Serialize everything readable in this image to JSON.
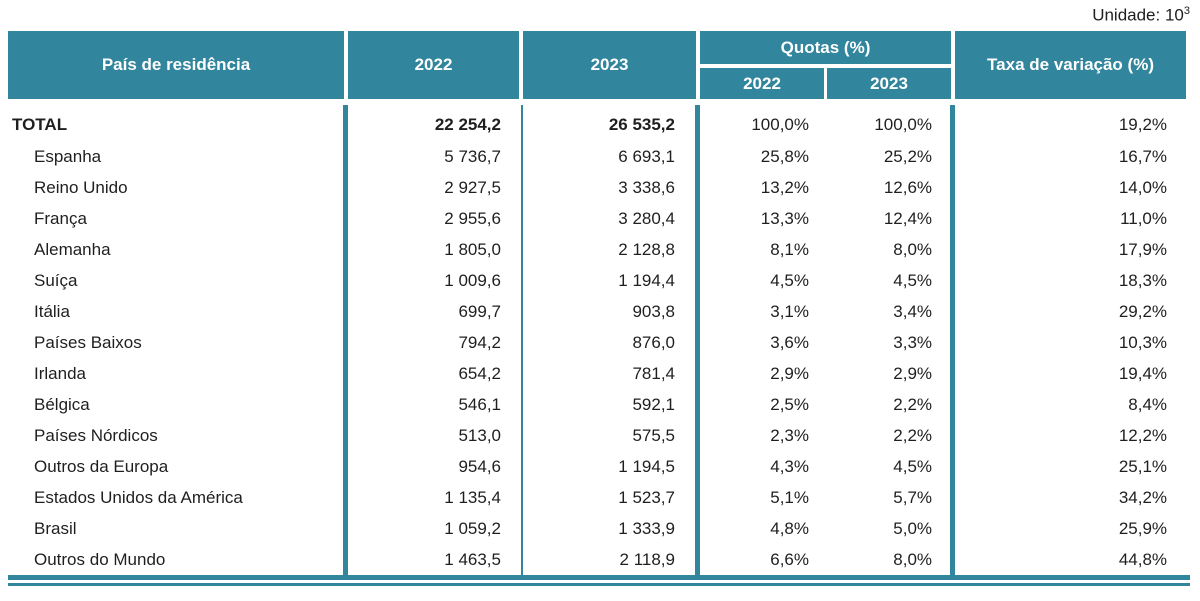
{
  "unit": {
    "label": "Unidade: 10",
    "exponent": "3"
  },
  "colors": {
    "accent_teal": "#31859C",
    "text_dark": "#1F1F1F",
    "header_text": "#FFFFFF"
  },
  "table": {
    "headers": {
      "country": "País de residência",
      "col_2022": "2022",
      "col_2023": "2023",
      "quotas_group": "Quotas (%)",
      "quotas_2022": "2022",
      "quotas_2023": "2023",
      "variation": "Taxa de variação (%)"
    },
    "rows": [
      {
        "country": "TOTAL",
        "v2022": "22 254,2",
        "v2023": "26 535,2",
        "q2022": "100,0%",
        "q2023": "100,0%",
        "variation": "19,2%",
        "emphasis": true
      },
      {
        "country": "Espanha",
        "v2022": "5 736,7",
        "v2023": "6 693,1",
        "q2022": "25,8%",
        "q2023": "25,2%",
        "variation": "16,7%",
        "emphasis": false
      },
      {
        "country": "Reino Unido",
        "v2022": "2 927,5",
        "v2023": "3 338,6",
        "q2022": "13,2%",
        "q2023": "12,6%",
        "variation": "14,0%",
        "emphasis": false
      },
      {
        "country": "França",
        "v2022": "2 955,6",
        "v2023": "3 280,4",
        "q2022": "13,3%",
        "q2023": "12,4%",
        "variation": "11,0%",
        "emphasis": false
      },
      {
        "country": "Alemanha",
        "v2022": "1 805,0",
        "v2023": "2 128,8",
        "q2022": "8,1%",
        "q2023": "8,0%",
        "variation": "17,9%",
        "emphasis": false
      },
      {
        "country": "Suíça",
        "v2022": "1 009,6",
        "v2023": "1 194,4",
        "q2022": "4,5%",
        "q2023": "4,5%",
        "variation": "18,3%",
        "emphasis": false
      },
      {
        "country": "Itália",
        "v2022": "699,7",
        "v2023": "903,8",
        "q2022": "3,1%",
        "q2023": "3,4%",
        "variation": "29,2%",
        "emphasis": false
      },
      {
        "country": "Países Baixos",
        "v2022": "794,2",
        "v2023": "876,0",
        "q2022": "3,6%",
        "q2023": "3,3%",
        "variation": "10,3%",
        "emphasis": false
      },
      {
        "country": "Irlanda",
        "v2022": "654,2",
        "v2023": "781,4",
        "q2022": "2,9%",
        "q2023": "2,9%",
        "variation": "19,4%",
        "emphasis": false
      },
      {
        "country": "Bélgica",
        "v2022": "546,1",
        "v2023": "592,1",
        "q2022": "2,5%",
        "q2023": "2,2%",
        "variation": "8,4%",
        "emphasis": false
      },
      {
        "country": "Países Nórdicos",
        "v2022": "513,0",
        "v2023": "575,5",
        "q2022": "2,3%",
        "q2023": "2,2%",
        "variation": "12,2%",
        "emphasis": false
      },
      {
        "country": "Outros da Europa",
        "v2022": "954,6",
        "v2023": "1 194,5",
        "q2022": "4,3%",
        "q2023": "4,5%",
        "variation": "25,1%",
        "emphasis": false
      },
      {
        "country": "Estados Unidos da América",
        "v2022": "1 135,4",
        "v2023": "1 523,7",
        "q2022": "5,1%",
        "q2023": "5,7%",
        "variation": "34,2%",
        "emphasis": false
      },
      {
        "country": "Brasil",
        "v2022": "1 059,2",
        "v2023": "1 333,9",
        "q2022": "4,8%",
        "q2023": "5,0%",
        "variation": "25,9%",
        "emphasis": false
      },
      {
        "country": "Outros do Mundo",
        "v2022": "1 463,5",
        "v2023": "2 118,9",
        "q2022": "6,6%",
        "q2023": "8,0%",
        "variation": "44,8%",
        "emphasis": false
      }
    ]
  }
}
